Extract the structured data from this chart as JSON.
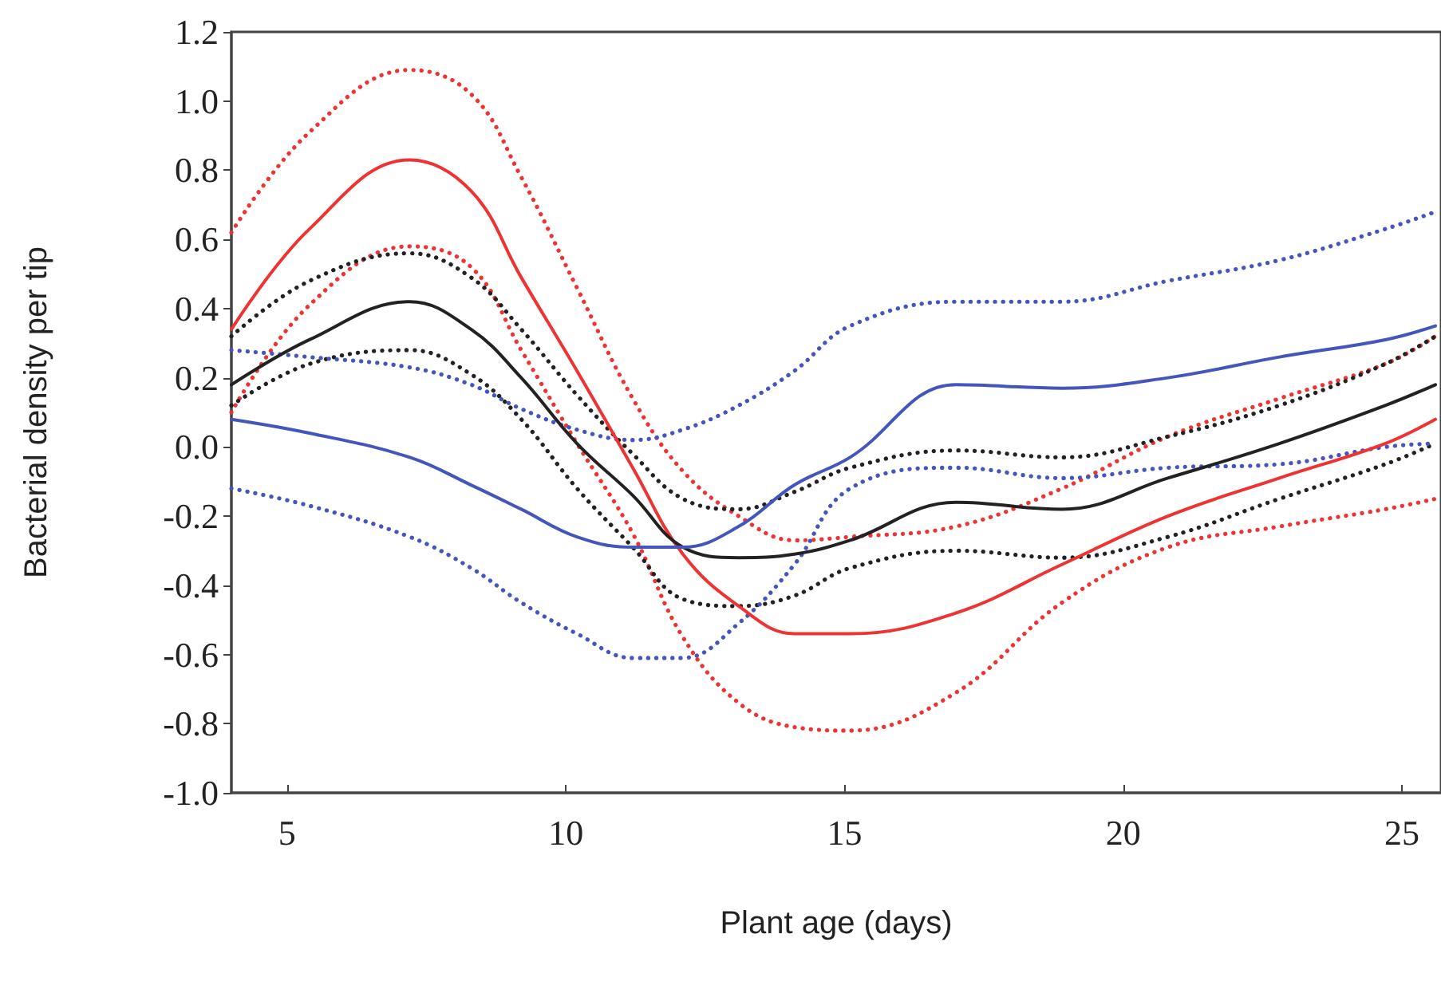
{
  "chart_data": {
    "type": "line",
    "xlabel": "Plant age (days)",
    "ylabel": "Bacterial density per tip",
    "x": [
      4.0,
      5.4,
      7.2,
      8.3,
      9.2,
      10.2,
      11.2,
      12.1,
      13.1,
      14.1,
      15.1,
      17.0,
      18.9,
      20.8,
      22.8,
      24.7,
      25.6
    ],
    "series": [
      {
        "color": "#ee3333",
        "line_style": "dotted",
        "values": [
          0.62,
          0.91,
          1.09,
          1.02,
          0.78,
          0.46,
          0.14,
          -0.07,
          -0.2,
          -0.27,
          -0.26,
          -0.23,
          -0.12,
          0.03,
          0.14,
          0.24,
          0.32
        ]
      },
      {
        "color": "#ee3333",
        "line_style": "dotted",
        "values": [
          0.1,
          0.41,
          0.58,
          0.52,
          0.28,
          0.01,
          -0.25,
          -0.55,
          -0.74,
          -0.81,
          -0.82,
          -0.71,
          -0.45,
          -0.29,
          -0.23,
          -0.18,
          -0.15
        ]
      },
      {
        "color": "#222222",
        "line_style": "dotted",
        "values": [
          0.32,
          0.48,
          0.56,
          0.49,
          0.34,
          0.15,
          -0.02,
          -0.15,
          -0.18,
          -0.13,
          -0.06,
          -0.01,
          -0.03,
          0.03,
          0.12,
          0.24,
          0.32
        ]
      },
      {
        "color": "#222222",
        "line_style": "dotted",
        "values": [
          0.12,
          0.24,
          0.28,
          0.21,
          0.08,
          -0.12,
          -0.29,
          -0.44,
          -0.46,
          -0.43,
          -0.35,
          -0.3,
          -0.32,
          -0.26,
          -0.15,
          -0.05,
          0.01
        ]
      },
      {
        "color": "#4455bb",
        "line_style": "dotted",
        "values": [
          0.28,
          0.26,
          0.23,
          0.18,
          0.11,
          0.05,
          0.02,
          0.05,
          0.12,
          0.22,
          0.35,
          0.42,
          0.42,
          0.48,
          0.54,
          0.63,
          0.68
        ]
      },
      {
        "color": "#4455bb",
        "line_style": "dotted",
        "values": [
          -0.12,
          -0.17,
          -0.26,
          -0.35,
          -0.45,
          -0.54,
          -0.61,
          -0.61,
          -0.51,
          -0.34,
          -0.12,
          -0.06,
          -0.09,
          -0.06,
          -0.05,
          0.0,
          0.01
        ]
      },
      {
        "color": "#ee3333",
        "values": [
          0.34,
          0.63,
          0.83,
          0.74,
          0.49,
          0.22,
          -0.06,
          -0.31,
          -0.46,
          -0.54,
          -0.54,
          -0.48,
          -0.34,
          -0.2,
          -0.09,
          0.01,
          0.08
        ]
      },
      {
        "color": "#222222",
        "values": [
          0.18,
          0.31,
          0.42,
          0.34,
          0.2,
          0.01,
          -0.14,
          -0.29,
          -0.32,
          -0.31,
          -0.27,
          -0.16,
          -0.18,
          -0.09,
          0.01,
          0.12,
          0.18
        ]
      },
      {
        "color": "#4455bb",
        "values": [
          0.08,
          0.04,
          -0.03,
          -0.11,
          -0.18,
          -0.26,
          -0.29,
          -0.29,
          -0.23,
          -0.11,
          -0.03,
          0.18,
          0.17,
          0.2,
          0.26,
          0.31,
          0.35
        ]
      }
    ],
    "xlim": [
      4,
      25.7
    ],
    "xticks": [
      5,
      10,
      15,
      20,
      25
    ],
    "ylim": [
      -1.0,
      1.2
    ],
    "yticks": [
      {
        "value": -1.0,
        "label": "-1.0"
      },
      -0.8,
      -0.6,
      -0.4,
      -0.2,
      {
        "value": 0.0,
        "label": "0.0"
      },
      0.2,
      0.4,
      0.6,
      0.8,
      {
        "value": 1.0,
        "label": "1.0"
      },
      1.2
    ],
    "grid": false,
    "marker": "none",
    "line_style": "solid"
  }
}
